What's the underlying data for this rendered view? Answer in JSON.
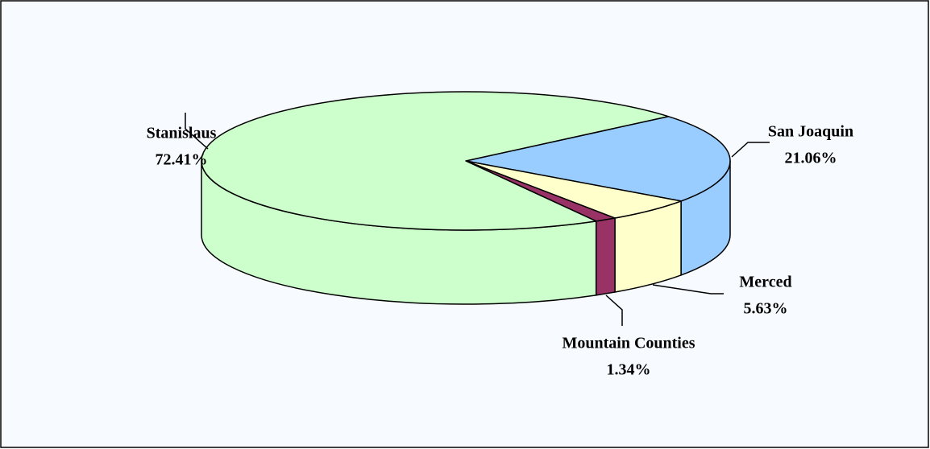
{
  "chart_data": {
    "type": "pie3d",
    "categories": [
      "Stanislaus",
      "San Joaquin",
      "Merced",
      "Mountain Counties"
    ],
    "values": [
      72.41,
      21.06,
      5.63,
      1.34
    ],
    "value_labels": [
      "72.41%",
      "21.06%",
      "5.63%",
      "1.34%"
    ],
    "colors": [
      "#ccffcc",
      "#99ccff",
      "#ffffcc",
      "#993366"
    ]
  }
}
